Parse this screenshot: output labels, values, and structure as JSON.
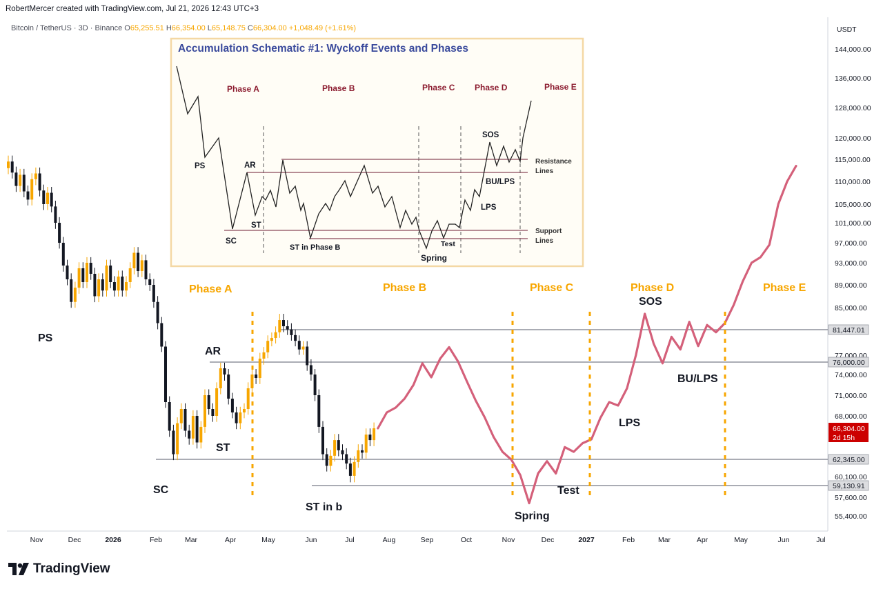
{
  "header": {
    "created_by": "RobertMercer created with TradingView.com, Jul 21, 2026 12:43 UTC+3"
  },
  "legend": {
    "symbol": "Bitcoin / TetherUS · 3D · Binance",
    "o_label": "O",
    "o": "65,255.51",
    "h_label": "H",
    "h": "66,354.00",
    "l_label": "L",
    "l": "65,148.75",
    "c_label": "C",
    "c": "66,304.00",
    "change": "+1,048.49 (+1.61%)"
  },
  "brand": {
    "name": "TradingView"
  },
  "colors": {
    "up": "#f7a600",
    "down": "#131722",
    "projection": "#d4607a",
    "phase": "#f7a600",
    "price_badge": "#cc0000",
    "inset_border": "#f4d8a4"
  },
  "chart_data": {
    "type": "line",
    "ylabel": "USDT",
    "y_ticks": [
      {
        "v": 144000,
        "label": "144,000.00"
      },
      {
        "v": 136000,
        "label": "136,000.00"
      },
      {
        "v": 128000,
        "label": "128,000.00"
      },
      {
        "v": 120000,
        "label": "120,000.00"
      },
      {
        "v": 115000,
        "label": "115,000.00"
      },
      {
        "v": 110000,
        "label": "110,000.00"
      },
      {
        "v": 105000,
        "label": "105,000.00"
      },
      {
        "v": 101000,
        "label": "101,000.00"
      },
      {
        "v": 97000,
        "label": "97,000.00"
      },
      {
        "v": 93000,
        "label": "93,000.00"
      },
      {
        "v": 89000,
        "label": "89,000.00"
      },
      {
        "v": 85000,
        "label": "85,000.00"
      },
      {
        "v": 77000,
        "label": "77,000.00"
      },
      {
        "v": 74000,
        "label": "74,000.00"
      },
      {
        "v": 71000,
        "label": "71,000.00"
      },
      {
        "v": 68000,
        "label": "68,000.00"
      },
      {
        "v": 60100,
        "label": "60,100.00"
      },
      {
        "v": 57600,
        "label": "57,600.00"
      },
      {
        "v": 55400,
        "label": "55,400.00"
      }
    ],
    "x_ticks": [
      {
        "label": "Nov",
        "bold": false
      },
      {
        "label": "Dec",
        "bold": false
      },
      {
        "label": "2026",
        "bold": true
      },
      {
        "label": "Feb",
        "bold": false
      },
      {
        "label": "Mar",
        "bold": false
      },
      {
        "label": "Apr",
        "bold": false
      },
      {
        "label": "May",
        "bold": false
      },
      {
        "label": "Jun",
        "bold": false
      },
      {
        "label": "Jul",
        "bold": false
      },
      {
        "label": "Aug",
        "bold": false
      },
      {
        "label": "Sep",
        "bold": false
      },
      {
        "label": "Oct",
        "bold": false
      },
      {
        "label": "Nov",
        "bold": false
      },
      {
        "label": "Dec",
        "bold": false
      },
      {
        "label": "2027",
        "bold": true
      },
      {
        "label": "Feb",
        "bold": false
      },
      {
        "label": "Mar",
        "bold": false
      },
      {
        "label": "Apr",
        "bold": false
      },
      {
        "label": "May",
        "bold": false
      },
      {
        "label": "Jun",
        "bold": false
      },
      {
        "label": "Jul",
        "bold": false
      }
    ],
    "levels": [
      {
        "value": 81447.01,
        "label": "81,447.01"
      },
      {
        "value": 76000.0,
        "label": "76,000.00"
      },
      {
        "value": 62345.0,
        "label": "62,345.00"
      },
      {
        "value": 59130.91,
        "label": "59,130.91"
      }
    ],
    "last_price": {
      "label": "66,304.00",
      "countdown": "2d 15h"
    },
    "projection_path": [
      [
        0,
        66300
      ],
      [
        1,
        68500
      ],
      [
        2,
        69200
      ],
      [
        3,
        70500
      ],
      [
        4,
        72500
      ],
      [
        5,
        75800
      ],
      [
        6,
        73600
      ],
      [
        7,
        76500
      ],
      [
        8,
        78400
      ],
      [
        9,
        76100
      ],
      [
        10,
        73000
      ],
      [
        11,
        70200
      ],
      [
        12,
        67800
      ],
      [
        13,
        65200
      ],
      [
        14,
        63300
      ],
      [
        15,
        62300
      ],
      [
        16,
        60300
      ],
      [
        17,
        56900
      ],
      [
        18,
        60500
      ],
      [
        19,
        62100
      ],
      [
        20,
        60500
      ],
      [
        21,
        63900
      ],
      [
        22,
        63300
      ],
      [
        23,
        64400
      ],
      [
        24,
        64900
      ],
      [
        25,
        67700
      ],
      [
        26,
        70000
      ],
      [
        27,
        69500
      ],
      [
        28,
        72000
      ],
      [
        29,
        77000
      ],
      [
        30,
        84000
      ],
      [
        31,
        79000
      ],
      [
        32,
        75800
      ],
      [
        33,
        80200
      ],
      [
        34,
        78000
      ],
      [
        35,
        82700
      ],
      [
        36,
        78600
      ],
      [
        37,
        82200
      ],
      [
        38,
        81000
      ],
      [
        39,
        82500
      ],
      [
        40,
        85500
      ],
      [
        41,
        89600
      ],
      [
        42,
        93000
      ],
      [
        43,
        94100
      ],
      [
        44,
        96600
      ],
      [
        45,
        105000
      ],
      [
        46,
        110000
      ],
      [
        47,
        113500
      ]
    ],
    "annotations": [
      "PS",
      "SC",
      "AR",
      "ST",
      "ST in b",
      "Spring",
      "Test",
      "LPS",
      "SOS",
      "BU/LPS"
    ],
    "phases": [
      "Phase A",
      "Phase B",
      "Phase C",
      "Phase D",
      "Phase E"
    ]
  },
  "inset": {
    "title": "Accumulation Schematic #1: Wyckoff Events and Phases",
    "phases": [
      "Phase A",
      "Phase B",
      "Phase C",
      "Phase D",
      "Phase E"
    ],
    "labels": [
      "PS",
      "AR",
      "ST",
      "SC",
      "ST in Phase B",
      "Spring",
      "Test",
      "LPS",
      "SOS",
      "BU/LPS"
    ],
    "resistance_label": [
      "Resistance",
      "Lines"
    ],
    "support_label": [
      "Support",
      "Lines"
    ]
  }
}
